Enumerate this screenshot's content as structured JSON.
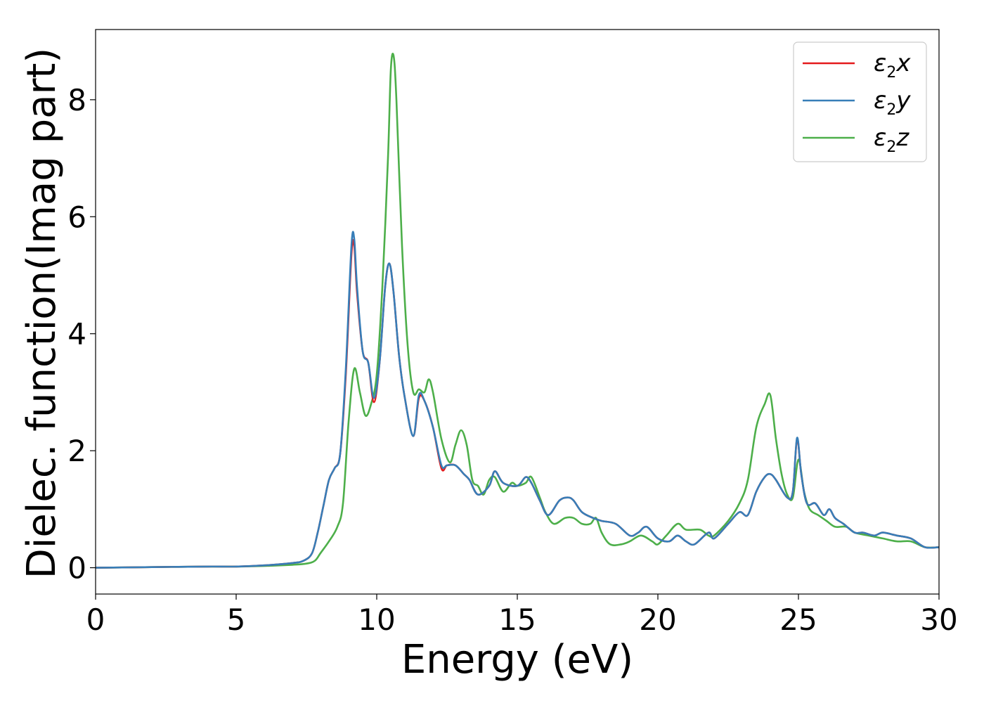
{
  "chart_data": {
    "type": "line",
    "title": "",
    "xlabel": "Energy (eV)",
    "ylabel": "Dielec. function(Imag part)",
    "xlim": [
      0,
      30
    ],
    "ylim": [
      -0.45,
      9.2
    ],
    "xticks": [
      0,
      5,
      10,
      15,
      20,
      25,
      30
    ],
    "yticks": [
      0,
      2,
      4,
      6,
      8
    ],
    "grid": false,
    "legend_position": "top-right",
    "series": [
      {
        "name": "ε₂x",
        "legend": {
          "symbol": "ε",
          "sub": "2",
          "var": "x"
        },
        "color": "#e41a1c",
        "x": [
          0,
          2,
          4,
          5,
          6,
          7,
          7.4,
          7.7,
          7.9,
          8.1,
          8.3,
          8.5,
          8.7,
          8.9,
          9.1,
          9.2,
          9.3,
          9.5,
          9.7,
          9.9,
          10.1,
          10.3,
          10.45,
          10.6,
          10.8,
          11.0,
          11.3,
          11.5,
          11.7,
          12.0,
          12.3,
          12.5,
          12.8,
          13.1,
          13.3,
          13.6,
          14.0,
          14.2,
          14.5,
          15.0,
          15.3,
          15.5,
          15.8,
          16.1,
          16.5,
          16.8,
          17.0,
          17.3,
          17.7,
          18.0,
          18.5,
          19.0,
          19.3,
          19.6,
          20.0,
          20.4,
          20.7,
          21.0,
          21.3,
          21.8,
          22.0,
          22.5,
          22.9,
          23.2,
          23.5,
          23.8,
          24.0,
          24.2,
          24.6,
          24.8,
          24.95,
          25.1,
          25.3,
          25.6,
          25.9,
          26.1,
          26.3,
          26.6,
          27.0,
          27.3,
          27.7,
          28.0,
          28.5,
          29.0,
          29.5,
          30.0
        ],
        "y": [
          0.0,
          0.01,
          0.02,
          0.02,
          0.04,
          0.08,
          0.12,
          0.25,
          0.6,
          1.05,
          1.5,
          1.7,
          1.95,
          3.3,
          5.35,
          5.5,
          4.7,
          3.7,
          3.5,
          2.83,
          3.5,
          4.8,
          5.2,
          4.7,
          3.6,
          2.9,
          2.25,
          2.9,
          2.85,
          2.4,
          1.7,
          1.75,
          1.75,
          1.6,
          1.5,
          1.25,
          1.4,
          1.65,
          1.45,
          1.4,
          1.55,
          1.45,
          1.15,
          0.9,
          1.15,
          1.2,
          1.15,
          0.95,
          0.85,
          0.8,
          0.75,
          0.55,
          0.6,
          0.7,
          0.5,
          0.45,
          0.55,
          0.45,
          0.4,
          0.6,
          0.5,
          0.75,
          0.95,
          0.9,
          1.3,
          1.55,
          1.6,
          1.5,
          1.2,
          1.3,
          2.2,
          1.6,
          1.1,
          1.1,
          0.9,
          1.0,
          0.85,
          0.75,
          0.6,
          0.6,
          0.55,
          0.6,
          0.55,
          0.5,
          0.35,
          0.35
        ]
      },
      {
        "name": "ε₂y",
        "legend": {
          "symbol": "ε",
          "sub": "2",
          "var": "y"
        },
        "color": "#377eb8",
        "x": [
          0,
          2,
          4,
          5,
          6,
          7,
          7.4,
          7.7,
          7.9,
          8.1,
          8.3,
          8.5,
          8.7,
          8.9,
          9.1,
          9.2,
          9.3,
          9.5,
          9.7,
          9.9,
          10.1,
          10.3,
          10.45,
          10.6,
          10.8,
          11.0,
          11.3,
          11.5,
          11.7,
          12.0,
          12.3,
          12.5,
          12.8,
          13.1,
          13.3,
          13.6,
          14.0,
          14.2,
          14.5,
          15.0,
          15.3,
          15.5,
          15.8,
          16.1,
          16.5,
          16.8,
          17.0,
          17.3,
          17.7,
          18.0,
          18.5,
          19.0,
          19.3,
          19.6,
          20.0,
          20.4,
          20.7,
          21.0,
          21.3,
          21.8,
          22.0,
          22.5,
          22.9,
          23.2,
          23.5,
          23.8,
          24.0,
          24.2,
          24.6,
          24.8,
          24.95,
          25.1,
          25.3,
          25.6,
          25.9,
          26.1,
          26.3,
          26.6,
          27.0,
          27.3,
          27.7,
          28.0,
          28.5,
          29.0,
          29.5,
          30.0
        ],
        "y": [
          0.0,
          0.01,
          0.02,
          0.02,
          0.04,
          0.08,
          0.12,
          0.25,
          0.6,
          1.05,
          1.5,
          1.7,
          1.95,
          3.4,
          5.5,
          5.62,
          4.8,
          3.7,
          3.5,
          2.9,
          3.5,
          4.8,
          5.2,
          4.7,
          3.6,
          2.9,
          2.25,
          2.95,
          2.85,
          2.4,
          1.75,
          1.75,
          1.75,
          1.6,
          1.5,
          1.25,
          1.4,
          1.65,
          1.45,
          1.4,
          1.55,
          1.45,
          1.15,
          0.9,
          1.15,
          1.2,
          1.15,
          0.95,
          0.85,
          0.8,
          0.75,
          0.55,
          0.6,
          0.7,
          0.5,
          0.45,
          0.55,
          0.45,
          0.4,
          0.6,
          0.5,
          0.75,
          0.95,
          0.9,
          1.3,
          1.55,
          1.6,
          1.5,
          1.2,
          1.3,
          2.22,
          1.6,
          1.1,
          1.1,
          0.9,
          1.0,
          0.85,
          0.75,
          0.6,
          0.6,
          0.55,
          0.6,
          0.55,
          0.5,
          0.35,
          0.35
        ]
      },
      {
        "name": "ε₂z",
        "legend": {
          "symbol": "ε",
          "sub": "2",
          "var": "z"
        },
        "color": "#4daf4a",
        "x": [
          0,
          2,
          4,
          5,
          6,
          7,
          7.5,
          7.8,
          8.0,
          8.3,
          8.6,
          8.8,
          9.0,
          9.2,
          9.4,
          9.6,
          9.8,
          10.0,
          10.2,
          10.4,
          10.5,
          10.6,
          10.7,
          10.9,
          11.1,
          11.3,
          11.5,
          11.7,
          11.85,
          12.0,
          12.3,
          12.6,
          12.8,
          13.0,
          13.2,
          13.4,
          13.6,
          13.8,
          14.0,
          14.2,
          14.5,
          14.8,
          15.0,
          15.3,
          15.5,
          15.8,
          16.0,
          16.3,
          16.7,
          17.0,
          17.3,
          17.6,
          17.8,
          18.0,
          18.3,
          18.7,
          19.0,
          19.4,
          19.8,
          20.0,
          20.3,
          20.7,
          21.0,
          21.5,
          21.8,
          22.0,
          22.5,
          22.9,
          23.2,
          23.5,
          23.8,
          24.0,
          24.2,
          24.4,
          24.6,
          24.8,
          25.0,
          25.2,
          25.4,
          25.7,
          26.0,
          26.3,
          26.7,
          27.0,
          27.5,
          28.0,
          28.5,
          29.0,
          29.5,
          30.0
        ],
        "y": [
          0.0,
          0.01,
          0.02,
          0.02,
          0.03,
          0.05,
          0.07,
          0.12,
          0.25,
          0.45,
          0.7,
          1.1,
          2.5,
          3.4,
          3.0,
          2.6,
          2.8,
          3.3,
          4.8,
          7.0,
          8.5,
          8.75,
          8.0,
          5.5,
          3.8,
          3.0,
          3.05,
          3.0,
          3.22,
          3.0,
          2.2,
          1.8,
          2.1,
          2.35,
          2.1,
          1.5,
          1.4,
          1.25,
          1.5,
          1.55,
          1.3,
          1.45,
          1.4,
          1.45,
          1.55,
          1.2,
          0.95,
          0.75,
          0.85,
          0.85,
          0.75,
          0.75,
          0.85,
          0.6,
          0.4,
          0.4,
          0.45,
          0.55,
          0.45,
          0.4,
          0.55,
          0.75,
          0.65,
          0.65,
          0.55,
          0.55,
          0.8,
          1.1,
          1.5,
          2.4,
          2.8,
          2.95,
          2.2,
          1.6,
          1.25,
          1.2,
          1.85,
          1.3,
          1.0,
          0.9,
          0.8,
          0.7,
          0.7,
          0.6,
          0.55,
          0.5,
          0.45,
          0.45,
          0.35,
          0.35
        ]
      }
    ]
  }
}
